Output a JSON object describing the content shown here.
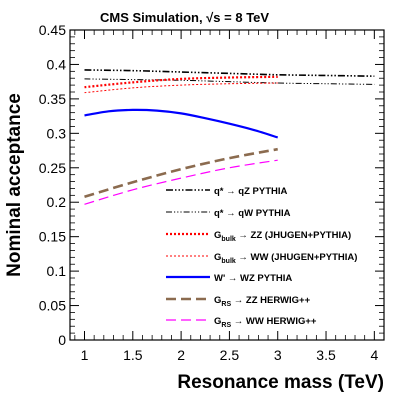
{
  "chart_data": {
    "type": "line",
    "title": "CMS Simulation, √s = 8 TeV",
    "xlabel": "Resonance mass (TeV)",
    "ylabel": "Nominal acceptance",
    "xlim": [
      0.85,
      4.1
    ],
    "ylim": [
      0,
      0.45
    ],
    "x_ticks": [
      "1",
      "1.5",
      "2",
      "2.5",
      "3",
      "3.5",
      "4"
    ],
    "y_ticks": [
      "0",
      "0.05",
      "0.1",
      "0.15",
      "0.2",
      "0.25",
      "0.3",
      "0.35",
      "0.4",
      "0.45"
    ],
    "grid": false,
    "legend_position": "lower-right",
    "series": [
      {
        "name": "q* → qZ PYTHIA",
        "label_main": "q* → qZ PYTHIA",
        "color": "#000000",
        "x": [
          1,
          1.5,
          2,
          2.5,
          3,
          3.5,
          4
        ],
        "y": [
          0.392,
          0.391,
          0.389,
          0.387,
          0.385,
          0.384,
          0.383
        ]
      },
      {
        "name": "q* → qW PYTHIA",
        "label_main": "q* → qW PYTHIA",
        "color": "#000000",
        "x": [
          1,
          1.5,
          2,
          2.5,
          3,
          3.5,
          4
        ],
        "y": [
          0.379,
          0.378,
          0.377,
          0.375,
          0.373,
          0.372,
          0.371
        ]
      },
      {
        "name": "Gbulk → ZZ (JHUGEN+PYTHIA)",
        "label_main": "G",
        "label_sub": "bulk",
        "label_rest": " → ZZ (JHUGEN+PYTHIA)",
        "color": "#ff0000",
        "x": [
          1,
          1.5,
          2,
          2.5,
          3
        ],
        "y": [
          0.367,
          0.374,
          0.379,
          0.381,
          0.382
        ]
      },
      {
        "name": "Gbulk → WW (JHUGEN+PYTHIA)",
        "label_main": "G",
        "label_sub": "bulk",
        "label_rest": " → WW (JHUGEN+PYTHIA)",
        "color": "#ff0000",
        "x": [
          1,
          1.5,
          2,
          2.5,
          3
        ],
        "y": [
          0.359,
          0.366,
          0.37,
          0.372,
          0.373
        ]
      },
      {
        "name": "W' → WZ PYTHIA",
        "label_main": "W' → WZ PYTHIA",
        "color": "#0000ff",
        "x": [
          1,
          1.25,
          1.5,
          1.75,
          2,
          2.25,
          2.5,
          2.75,
          3
        ],
        "y": [
          0.326,
          0.332,
          0.334,
          0.333,
          0.329,
          0.322,
          0.314,
          0.305,
          0.294
        ]
      },
      {
        "name": "GRS → ZZ HERWIG++",
        "label_main": "G",
        "label_sub": "RS",
        "label_rest": " → ZZ HERWIG++",
        "color": "#8b6b4f",
        "x": [
          1,
          1.5,
          2,
          2.5,
          3
        ],
        "y": [
          0.208,
          0.229,
          0.248,
          0.264,
          0.277
        ]
      },
      {
        "name": "GRS → WW HERWIG++",
        "label_main": "G",
        "label_sub": "RS",
        "label_rest": " → WW HERWIG++",
        "color": "#ff00ff",
        "x": [
          1,
          1.5,
          2,
          2.5,
          3
        ],
        "y": [
          0.197,
          0.218,
          0.235,
          0.25,
          0.261
        ]
      }
    ]
  }
}
